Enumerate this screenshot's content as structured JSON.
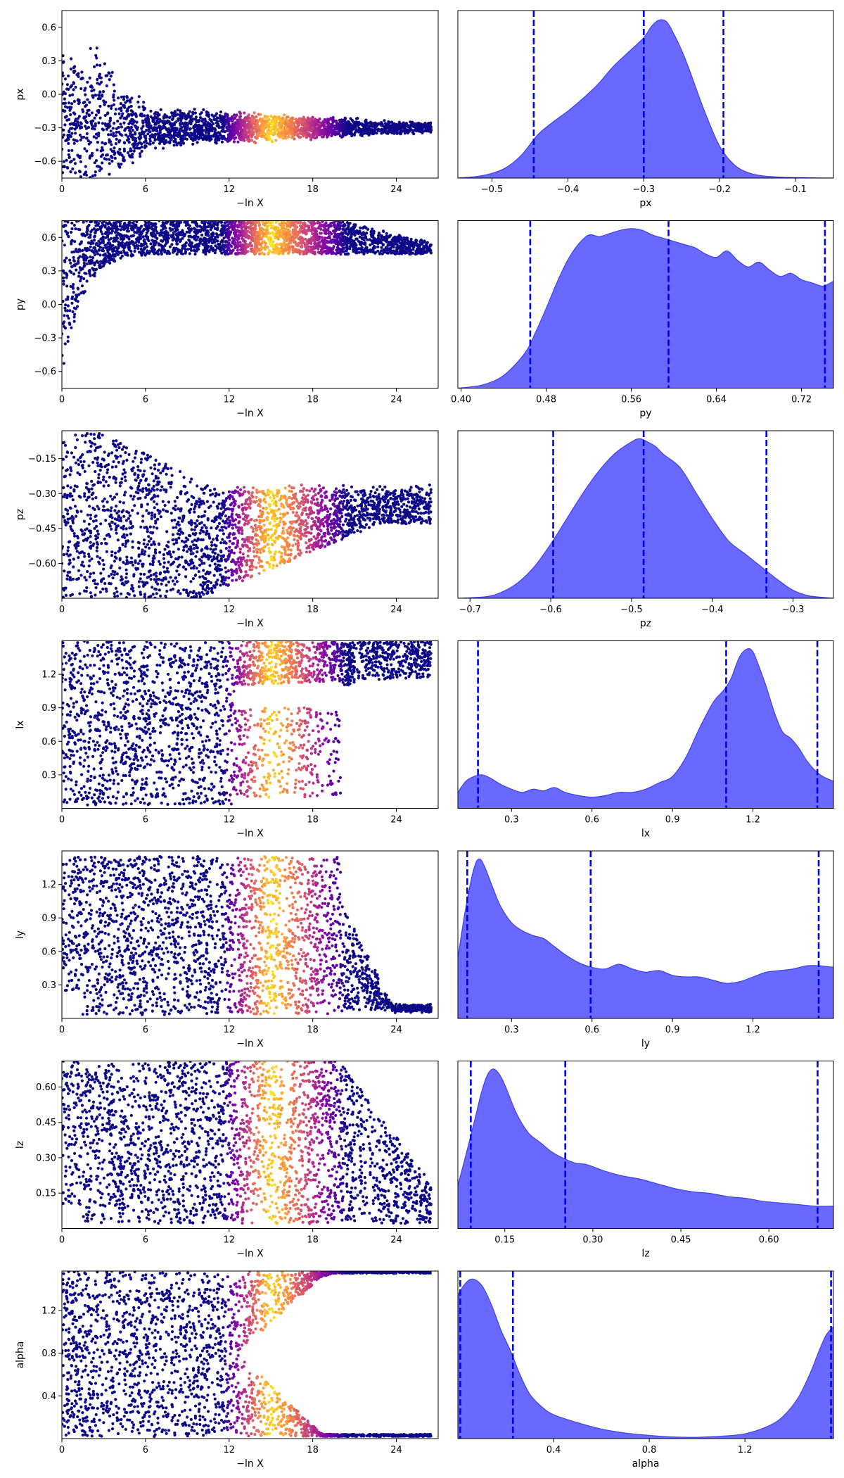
{
  "colors": {
    "kde_fill": "#6666ff",
    "kde_line": "#3f3ff5",
    "quantile_line": "#0000ee",
    "colormap": "plasma",
    "axes": "#000000"
  },
  "chart_data": [
    {
      "type": "scatter",
      "panel": "trace",
      "xlabel": "−ln X",
      "ylabel": "px",
      "xlim": [
        0,
        27
      ],
      "ylim": [
        -0.75,
        0.75
      ],
      "xticks": [
        "0",
        "6",
        "12",
        "18",
        "24"
      ],
      "xtick_values": [
        0,
        6,
        12,
        18,
        24
      ],
      "yticks": [
        "0.6",
        "0.3",
        "0.0",
        "−0.3",
        "−0.6"
      ],
      "ytick_values": [
        0.6,
        0.3,
        0.0,
        -0.3,
        -0.6
      ],
      "center": -0.3,
      "final_spread": 0.05
    },
    {
      "type": "area",
      "panel": "posterior",
      "xlabel": "px",
      "xlim": [
        -0.545,
        -0.05
      ],
      "xticks": [
        "−0.5",
        "−0.4",
        "−0.3",
        "−0.2",
        "−0.1"
      ],
      "xtick_values": [
        -0.5,
        -0.4,
        -0.3,
        -0.2,
        -0.1
      ],
      "quantiles": [
        -0.445,
        -0.3,
        -0.195
      ],
      "density": {
        "x": [
          -0.545,
          -0.52,
          -0.5,
          -0.48,
          -0.46,
          -0.44,
          -0.42,
          -0.4,
          -0.38,
          -0.36,
          -0.34,
          -0.32,
          -0.3,
          -0.29,
          -0.28,
          -0.27,
          -0.26,
          -0.25,
          -0.24,
          -0.22,
          -0.2,
          -0.18,
          -0.16,
          -0.14,
          -0.12,
          -0.1,
          -0.05
        ],
        "y": [
          0.0,
          0.01,
          0.03,
          0.07,
          0.15,
          0.27,
          0.35,
          0.42,
          0.5,
          0.59,
          0.7,
          0.79,
          0.88,
          0.95,
          0.99,
          0.98,
          0.9,
          0.8,
          0.68,
          0.42,
          0.2,
          0.08,
          0.03,
          0.012,
          0.006,
          0.003,
          0.0
        ]
      }
    },
    {
      "type": "scatter",
      "panel": "trace",
      "xlabel": "−ln X",
      "ylabel": "py",
      "xlim": [
        0,
        27
      ],
      "ylim": [
        -0.75,
        0.75
      ],
      "xticks": [
        "0",
        "6",
        "12",
        "18",
        "24"
      ],
      "xtick_values": [
        0,
        6,
        12,
        18,
        24
      ],
      "yticks": [
        "0.6",
        "0.3",
        "0.0",
        "−0.3",
        "−0.6"
      ],
      "ytick_values": [
        0.6,
        0.3,
        0.0,
        -0.3,
        -0.6
      ],
      "band_low": 0.45,
      "band_high": 0.75
    },
    {
      "type": "area",
      "panel": "posterior",
      "xlabel": "py",
      "xlim": [
        0.397,
        0.75
      ],
      "xticks": [
        "0.40",
        "0.48",
        "0.56",
        "0.64",
        "0.72"
      ],
      "xtick_values": [
        0.4,
        0.48,
        0.56,
        0.64,
        0.72
      ],
      "quantiles": [
        0.465,
        0.595,
        0.742
      ],
      "density": {
        "x": [
          0.397,
          0.42,
          0.44,
          0.46,
          0.47,
          0.48,
          0.49,
          0.5,
          0.51,
          0.52,
          0.53,
          0.54,
          0.55,
          0.56,
          0.57,
          0.58,
          0.59,
          0.6,
          0.61,
          0.62,
          0.63,
          0.64,
          0.65,
          0.66,
          0.67,
          0.68,
          0.69,
          0.7,
          0.71,
          0.72,
          0.73,
          0.74,
          0.75
        ],
        "y": [
          0.0,
          0.02,
          0.08,
          0.22,
          0.35,
          0.5,
          0.66,
          0.8,
          0.9,
          0.96,
          0.95,
          0.97,
          0.99,
          1.0,
          0.99,
          0.96,
          0.94,
          0.92,
          0.9,
          0.88,
          0.84,
          0.82,
          0.86,
          0.8,
          0.76,
          0.79,
          0.74,
          0.7,
          0.72,
          0.68,
          0.66,
          0.64,
          0.67
        ]
      }
    },
    {
      "type": "scatter",
      "panel": "trace",
      "xlabel": "−ln X",
      "ylabel": "pz",
      "xlim": [
        0,
        27
      ],
      "ylim": [
        -0.75,
        -0.03
      ],
      "xticks": [
        "0",
        "6",
        "12",
        "18",
        "24"
      ],
      "xtick_values": [
        0,
        6,
        12,
        18,
        24
      ],
      "yticks": [
        "−0.15",
        "−0.30",
        "−0.45",
        "−0.60"
      ],
      "ytick_values": [
        -0.15,
        -0.3,
        -0.45,
        -0.6
      ],
      "center": -0.45,
      "final_spread": 0.1
    },
    {
      "type": "area",
      "panel": "posterior",
      "xlabel": "pz",
      "xlim": [
        -0.715,
        -0.25
      ],
      "xticks": [
        "−0.7",
        "−0.6",
        "−0.5",
        "−0.4",
        "−0.3"
      ],
      "xtick_values": [
        -0.7,
        -0.6,
        -0.5,
        -0.4,
        -0.3
      ],
      "quantiles": [
        -0.597,
        -0.485,
        -0.333
      ],
      "density": {
        "x": [
          -0.715,
          -0.68,
          -0.66,
          -0.64,
          -0.62,
          -0.6,
          -0.58,
          -0.56,
          -0.54,
          -0.52,
          -0.5,
          -0.49,
          -0.48,
          -0.47,
          -0.46,
          -0.44,
          -0.42,
          -0.4,
          -0.38,
          -0.36,
          -0.34,
          -0.32,
          -0.3,
          -0.28,
          -0.25
        ],
        "y": [
          0.0,
          0.01,
          0.04,
          0.1,
          0.2,
          0.34,
          0.5,
          0.66,
          0.8,
          0.91,
          0.98,
          1.0,
          0.98,
          0.95,
          0.9,
          0.82,
          0.66,
          0.5,
          0.36,
          0.28,
          0.2,
          0.12,
          0.05,
          0.015,
          0.0
        ]
      }
    },
    {
      "type": "scatter",
      "panel": "trace",
      "xlabel": "−ln X",
      "ylabel": "lx",
      "xlim": [
        0,
        27
      ],
      "ylim": [
        0.0,
        1.5
      ],
      "xticks": [
        "0",
        "6",
        "12",
        "18",
        "24"
      ],
      "xtick_values": [
        0,
        6,
        12,
        18,
        24
      ],
      "yticks": [
        "1.2",
        "0.9",
        "0.6",
        "0.3"
      ],
      "ytick_values": [
        1.2,
        0.9,
        0.6,
        0.3
      ],
      "band_low": 1.1,
      "band_high": 1.5
    },
    {
      "type": "area",
      "panel": "posterior",
      "xlabel": "lx",
      "xlim": [
        0.1,
        1.5
      ],
      "xticks": [
        "0.3",
        "0.6",
        "0.9",
        "1.2"
      ],
      "xtick_values": [
        0.3,
        0.6,
        0.9,
        1.2
      ],
      "quantiles": [
        0.175,
        1.1,
        1.44
      ],
      "density": {
        "x": [
          0.1,
          0.13,
          0.16,
          0.19,
          0.22,
          0.26,
          0.3,
          0.34,
          0.38,
          0.42,
          0.46,
          0.5,
          0.55,
          0.6,
          0.65,
          0.7,
          0.75,
          0.8,
          0.85,
          0.9,
          0.95,
          1.0,
          1.05,
          1.08,
          1.1,
          1.12,
          1.15,
          1.18,
          1.2,
          1.22,
          1.25,
          1.28,
          1.31,
          1.34,
          1.37,
          1.4,
          1.43,
          1.46,
          1.5
        ],
        "y": [
          0.1,
          0.17,
          0.2,
          0.21,
          0.19,
          0.15,
          0.12,
          0.1,
          0.12,
          0.11,
          0.13,
          0.1,
          0.08,
          0.07,
          0.08,
          0.1,
          0.1,
          0.12,
          0.16,
          0.2,
          0.32,
          0.5,
          0.66,
          0.72,
          0.76,
          0.82,
          0.95,
          1.0,
          0.98,
          0.9,
          0.76,
          0.6,
          0.48,
          0.44,
          0.38,
          0.3,
          0.24,
          0.2,
          0.17
        ]
      }
    },
    {
      "type": "scatter",
      "panel": "trace",
      "xlabel": "−ln X",
      "ylabel": "ly",
      "xlim": [
        0,
        27
      ],
      "ylim": [
        0.0,
        1.5
      ],
      "xticks": [
        "0",
        "6",
        "12",
        "18",
        "24"
      ],
      "xtick_values": [
        0,
        6,
        12,
        18,
        24
      ],
      "yticks": [
        "1.2",
        "0.9",
        "0.6",
        "0.3"
      ],
      "ytick_values": [
        1.2,
        0.9,
        0.6,
        0.3
      ]
    },
    {
      "type": "area",
      "panel": "posterior",
      "xlabel": "ly",
      "xlim": [
        0.1,
        1.5
      ],
      "xticks": [
        "0.3",
        "0.6",
        "0.9",
        "1.2"
      ],
      "xtick_values": [
        0.3,
        0.6,
        0.9,
        1.2
      ],
      "quantiles": [
        0.135,
        0.595,
        1.445
      ],
      "density": {
        "x": [
          0.1,
          0.13,
          0.16,
          0.18,
          0.2,
          0.23,
          0.26,
          0.3,
          0.34,
          0.38,
          0.42,
          0.46,
          0.5,
          0.55,
          0.6,
          0.65,
          0.7,
          0.75,
          0.8,
          0.85,
          0.9,
          0.95,
          1.0,
          1.05,
          1.1,
          1.15,
          1.2,
          1.25,
          1.3,
          1.35,
          1.4,
          1.45,
          1.5
        ],
        "y": [
          0.38,
          0.7,
          0.94,
          1.0,
          0.95,
          0.82,
          0.7,
          0.6,
          0.55,
          0.52,
          0.5,
          0.45,
          0.4,
          0.35,
          0.32,
          0.31,
          0.34,
          0.31,
          0.29,
          0.3,
          0.27,
          0.26,
          0.26,
          0.24,
          0.22,
          0.23,
          0.26,
          0.29,
          0.3,
          0.31,
          0.33,
          0.33,
          0.32
        ]
      }
    },
    {
      "type": "scatter",
      "panel": "trace",
      "xlabel": "−ln X",
      "ylabel": "lz",
      "xlim": [
        0,
        27
      ],
      "ylim": [
        0.0,
        0.71
      ],
      "xticks": [
        "0",
        "6",
        "12",
        "18",
        "24"
      ],
      "xtick_values": [
        0,
        6,
        12,
        18,
        24
      ],
      "yticks": [
        "0.60",
        "0.45",
        "0.30",
        "0.15"
      ],
      "ytick_values": [
        0.6,
        0.45,
        0.3,
        0.15
      ]
    },
    {
      "type": "area",
      "panel": "posterior",
      "xlabel": "lz",
      "xlim": [
        0.07,
        0.71
      ],
      "xticks": [
        "0.15",
        "0.30",
        "0.45",
        "0.60"
      ],
      "xtick_values": [
        0.15,
        0.3,
        0.45,
        0.6
      ],
      "quantiles": [
        0.092,
        0.253,
        0.683
      ],
      "density": {
        "x": [
          0.07,
          0.085,
          0.1,
          0.11,
          0.12,
          0.13,
          0.14,
          0.15,
          0.17,
          0.19,
          0.21,
          0.23,
          0.25,
          0.27,
          0.29,
          0.32,
          0.35,
          0.38,
          0.41,
          0.44,
          0.47,
          0.5,
          0.53,
          0.56,
          0.59,
          0.62,
          0.65,
          0.68,
          0.71
        ],
        "y": [
          0.27,
          0.48,
          0.7,
          0.85,
          0.96,
          1.0,
          0.97,
          0.9,
          0.72,
          0.6,
          0.54,
          0.48,
          0.44,
          0.41,
          0.4,
          0.36,
          0.33,
          0.31,
          0.28,
          0.25,
          0.23,
          0.22,
          0.2,
          0.19,
          0.17,
          0.16,
          0.15,
          0.14,
          0.14
        ]
      }
    },
    {
      "type": "scatter",
      "panel": "trace",
      "xlabel": "−ln X",
      "ylabel": "alpha",
      "xlim": [
        0,
        27
      ],
      "ylim": [
        0.0,
        1.57
      ],
      "xticks": [
        "0",
        "6",
        "12",
        "18",
        "24"
      ],
      "xtick_values": [
        0,
        6,
        12,
        18,
        24
      ],
      "yticks": [
        "1.2",
        "0.8",
        "0.4"
      ],
      "ytick_values": [
        1.2,
        0.8,
        0.4
      ]
    },
    {
      "type": "area",
      "panel": "posterior",
      "xlabel": "alpha",
      "xlim": [
        0.0,
        1.57
      ],
      "xticks": [
        "0.4",
        "0.8",
        "1.2"
      ],
      "xtick_values": [
        0.4,
        0.8,
        1.2
      ],
      "quantiles": [
        0.01,
        0.23,
        1.56
      ],
      "density": {
        "x": [
          0.0,
          0.03,
          0.06,
          0.1,
          0.14,
          0.18,
          0.22,
          0.26,
          0.3,
          0.35,
          0.4,
          0.5,
          0.6,
          0.7,
          0.8,
          0.9,
          1.0,
          1.1,
          1.2,
          1.3,
          1.36,
          1.42,
          1.47,
          1.51,
          1.54,
          1.57
        ],
        "y": [
          0.9,
          0.97,
          1.0,
          0.96,
          0.84,
          0.68,
          0.55,
          0.4,
          0.28,
          0.2,
          0.15,
          0.1,
          0.06,
          0.035,
          0.02,
          0.01,
          0.008,
          0.015,
          0.03,
          0.08,
          0.14,
          0.25,
          0.4,
          0.55,
          0.65,
          0.7
        ]
      }
    }
  ]
}
